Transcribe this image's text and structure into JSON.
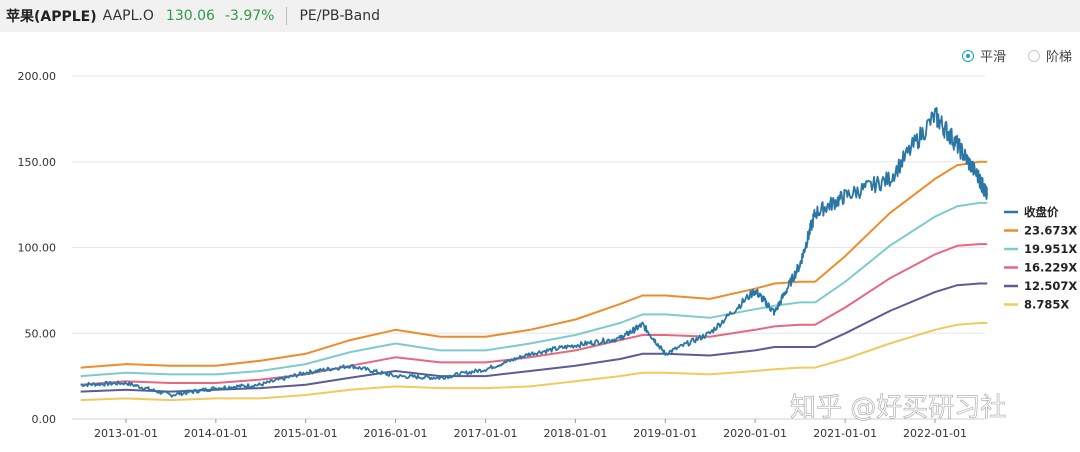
{
  "header": {
    "name": "苹果(APPLE)",
    "code": "AAPL.O",
    "price": "130.06",
    "change": "-3.97%",
    "mode": "PE/PB-Band"
  },
  "options": {
    "smooth": "平滑",
    "step": "阶梯",
    "selected": "smooth"
  },
  "watermark": "知乎 @好买研习社",
  "chart_data": {
    "type": "line",
    "title": "",
    "xlabel": "",
    "ylabel": "",
    "ylim": [
      0,
      200
    ],
    "yticks": [
      "0.00",
      "50.00",
      "100.00",
      "150.00",
      "200.00"
    ],
    "xticks": [
      "2013-01-01",
      "2014-01-01",
      "2015-01-01",
      "2016-01-01",
      "2017-01-01",
      "2018-01-01",
      "2019-01-01",
      "2020-01-01",
      "2021-01-01",
      "2022-01-01"
    ],
    "grid": "horizontal",
    "legend_position": "right",
    "x": [
      "2012-07-01",
      "2013-01-01",
      "2013-07-01",
      "2014-01-01",
      "2014-07-01",
      "2015-01-01",
      "2015-07-01",
      "2016-01-01",
      "2016-07-01",
      "2017-01-01",
      "2017-07-01",
      "2018-01-01",
      "2018-07-01",
      "2018-10-01",
      "2019-01-01",
      "2019-07-01",
      "2020-01-01",
      "2020-03-20",
      "2020-07-01",
      "2020-09-01",
      "2021-01-01",
      "2021-07-01",
      "2022-01-01",
      "2022-04-01",
      "2022-07-01",
      "2022-08-01"
    ],
    "series": [
      {
        "name": "收盘价",
        "color": "#2a77a6",
        "values": [
          20,
          21,
          14,
          18,
          20,
          27,
          31,
          25,
          24,
          29,
          38,
          43,
          47,
          55,
          38,
          50,
          75,
          62,
          90,
          120,
          130,
          140,
          177,
          160,
          140,
          130
        ]
      },
      {
        "name": "23.673X",
        "color": "#ef8c2a",
        "values": [
          30,
          32,
          31,
          31,
          34,
          38,
          46,
          52,
          48,
          48,
          52,
          58,
          67,
          72,
          72,
          70,
          76,
          79,
          80,
          80,
          95,
          120,
          140,
          148,
          150,
          150
        ]
      },
      {
        "name": "19.951X",
        "color": "#7ecbcf",
        "values": [
          25,
          27,
          26,
          26,
          28,
          32,
          39,
          44,
          40,
          40,
          44,
          49,
          56,
          61,
          61,
          59,
          64,
          66,
          68,
          68,
          80,
          101,
          118,
          124,
          126,
          126
        ]
      },
      {
        "name": "16.229X",
        "color": "#e8677f",
        "values": [
          20,
          22,
          21,
          21,
          23,
          26,
          31,
          36,
          33,
          33,
          36,
          40,
          46,
          49,
          49,
          48,
          52,
          54,
          55,
          55,
          65,
          82,
          96,
          101,
          102,
          102
        ]
      },
      {
        "name": "12.507X",
        "color": "#5c5b94",
        "values": [
          16,
          17,
          16,
          17,
          18,
          20,
          24,
          28,
          25,
          25,
          28,
          31,
          35,
          38,
          38,
          37,
          40,
          42,
          42,
          42,
          50,
          63,
          74,
          78,
          79,
          79
        ]
      },
      {
        "name": "8.785X",
        "color": "#f0ca5e",
        "values": [
          11,
          12,
          11,
          12,
          12,
          14,
          17,
          19,
          18,
          18,
          19,
          22,
          25,
          27,
          27,
          26,
          28,
          29,
          30,
          30,
          35,
          44,
          52,
          55,
          56,
          56
        ]
      }
    ]
  }
}
